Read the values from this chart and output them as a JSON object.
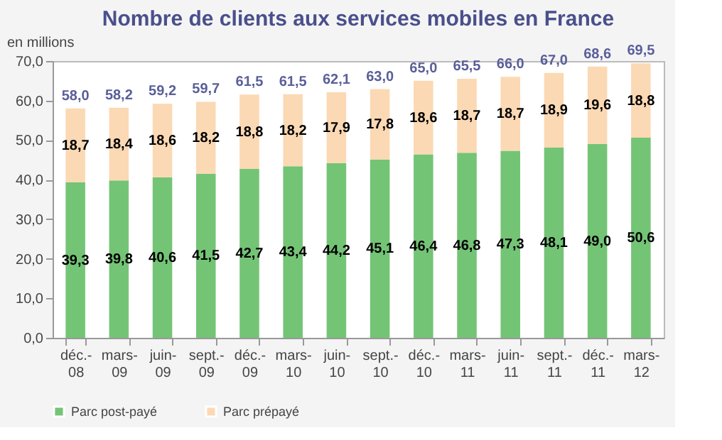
{
  "chart_data": {
    "type": "bar",
    "title": "Nombre de clients aux services mobiles en France",
    "ylabel": "en millions",
    "categories": [
      "déc.-08",
      "mars-09",
      "juin-09",
      "sept.-09",
      "déc.-09",
      "mars-10",
      "juin-10",
      "sept.-10",
      "déc.-10",
      "mars-11",
      "juin-11",
      "sept.-11",
      "déc.-11",
      "mars-12"
    ],
    "series": [
      {
        "name": "Parc post-payé",
        "color": "#74c476",
        "values": [
          39.3,
          39.8,
          40.6,
          41.5,
          42.7,
          43.4,
          44.2,
          45.1,
          46.4,
          46.8,
          47.3,
          48.1,
          49.0,
          50.6
        ],
        "value_labels": [
          "39,3",
          "39,8",
          "40,6",
          "41,5",
          "42,7",
          "43,4",
          "44,2",
          "45,1",
          "46,4",
          "46,8",
          "47,3",
          "48,1",
          "49,0",
          "50,6"
        ]
      },
      {
        "name": "Parc prépayé",
        "color": "#fbd9b4",
        "values": [
          18.7,
          18.4,
          18.6,
          18.2,
          18.8,
          18.2,
          17.9,
          17.8,
          18.6,
          18.7,
          18.7,
          18.9,
          19.6,
          18.8
        ],
        "value_labels": [
          "18,7",
          "18,4",
          "18,6",
          "18,2",
          "18,8",
          "18,2",
          "17,9",
          "17,8",
          "18,6",
          "18,7",
          "18,7",
          "18,9",
          "19,6",
          "18,8"
        ]
      }
    ],
    "stacked": true,
    "totals": [
      "58,0",
      "58,2",
      "59,2",
      "59,7",
      "61,5",
      "61,5",
      "62,1",
      "63,0",
      "65,0",
      "65,5",
      "66,0",
      "67,0",
      "68,6",
      "69,5"
    ],
    "ylim": [
      0,
      70
    ],
    "yticks": [
      {
        "value": 0,
        "label": "0,0"
      },
      {
        "value": 10,
        "label": "10,0"
      },
      {
        "value": 20,
        "label": "20,0"
      },
      {
        "value": 30,
        "label": "30,0"
      },
      {
        "value": 40,
        "label": "40,0"
      },
      {
        "value": 50,
        "label": "50,0"
      },
      {
        "value": 60,
        "label": "60,0"
      },
      {
        "value": 70,
        "label": "70,0"
      }
    ],
    "grid": false,
    "legend": "bottom"
  }
}
